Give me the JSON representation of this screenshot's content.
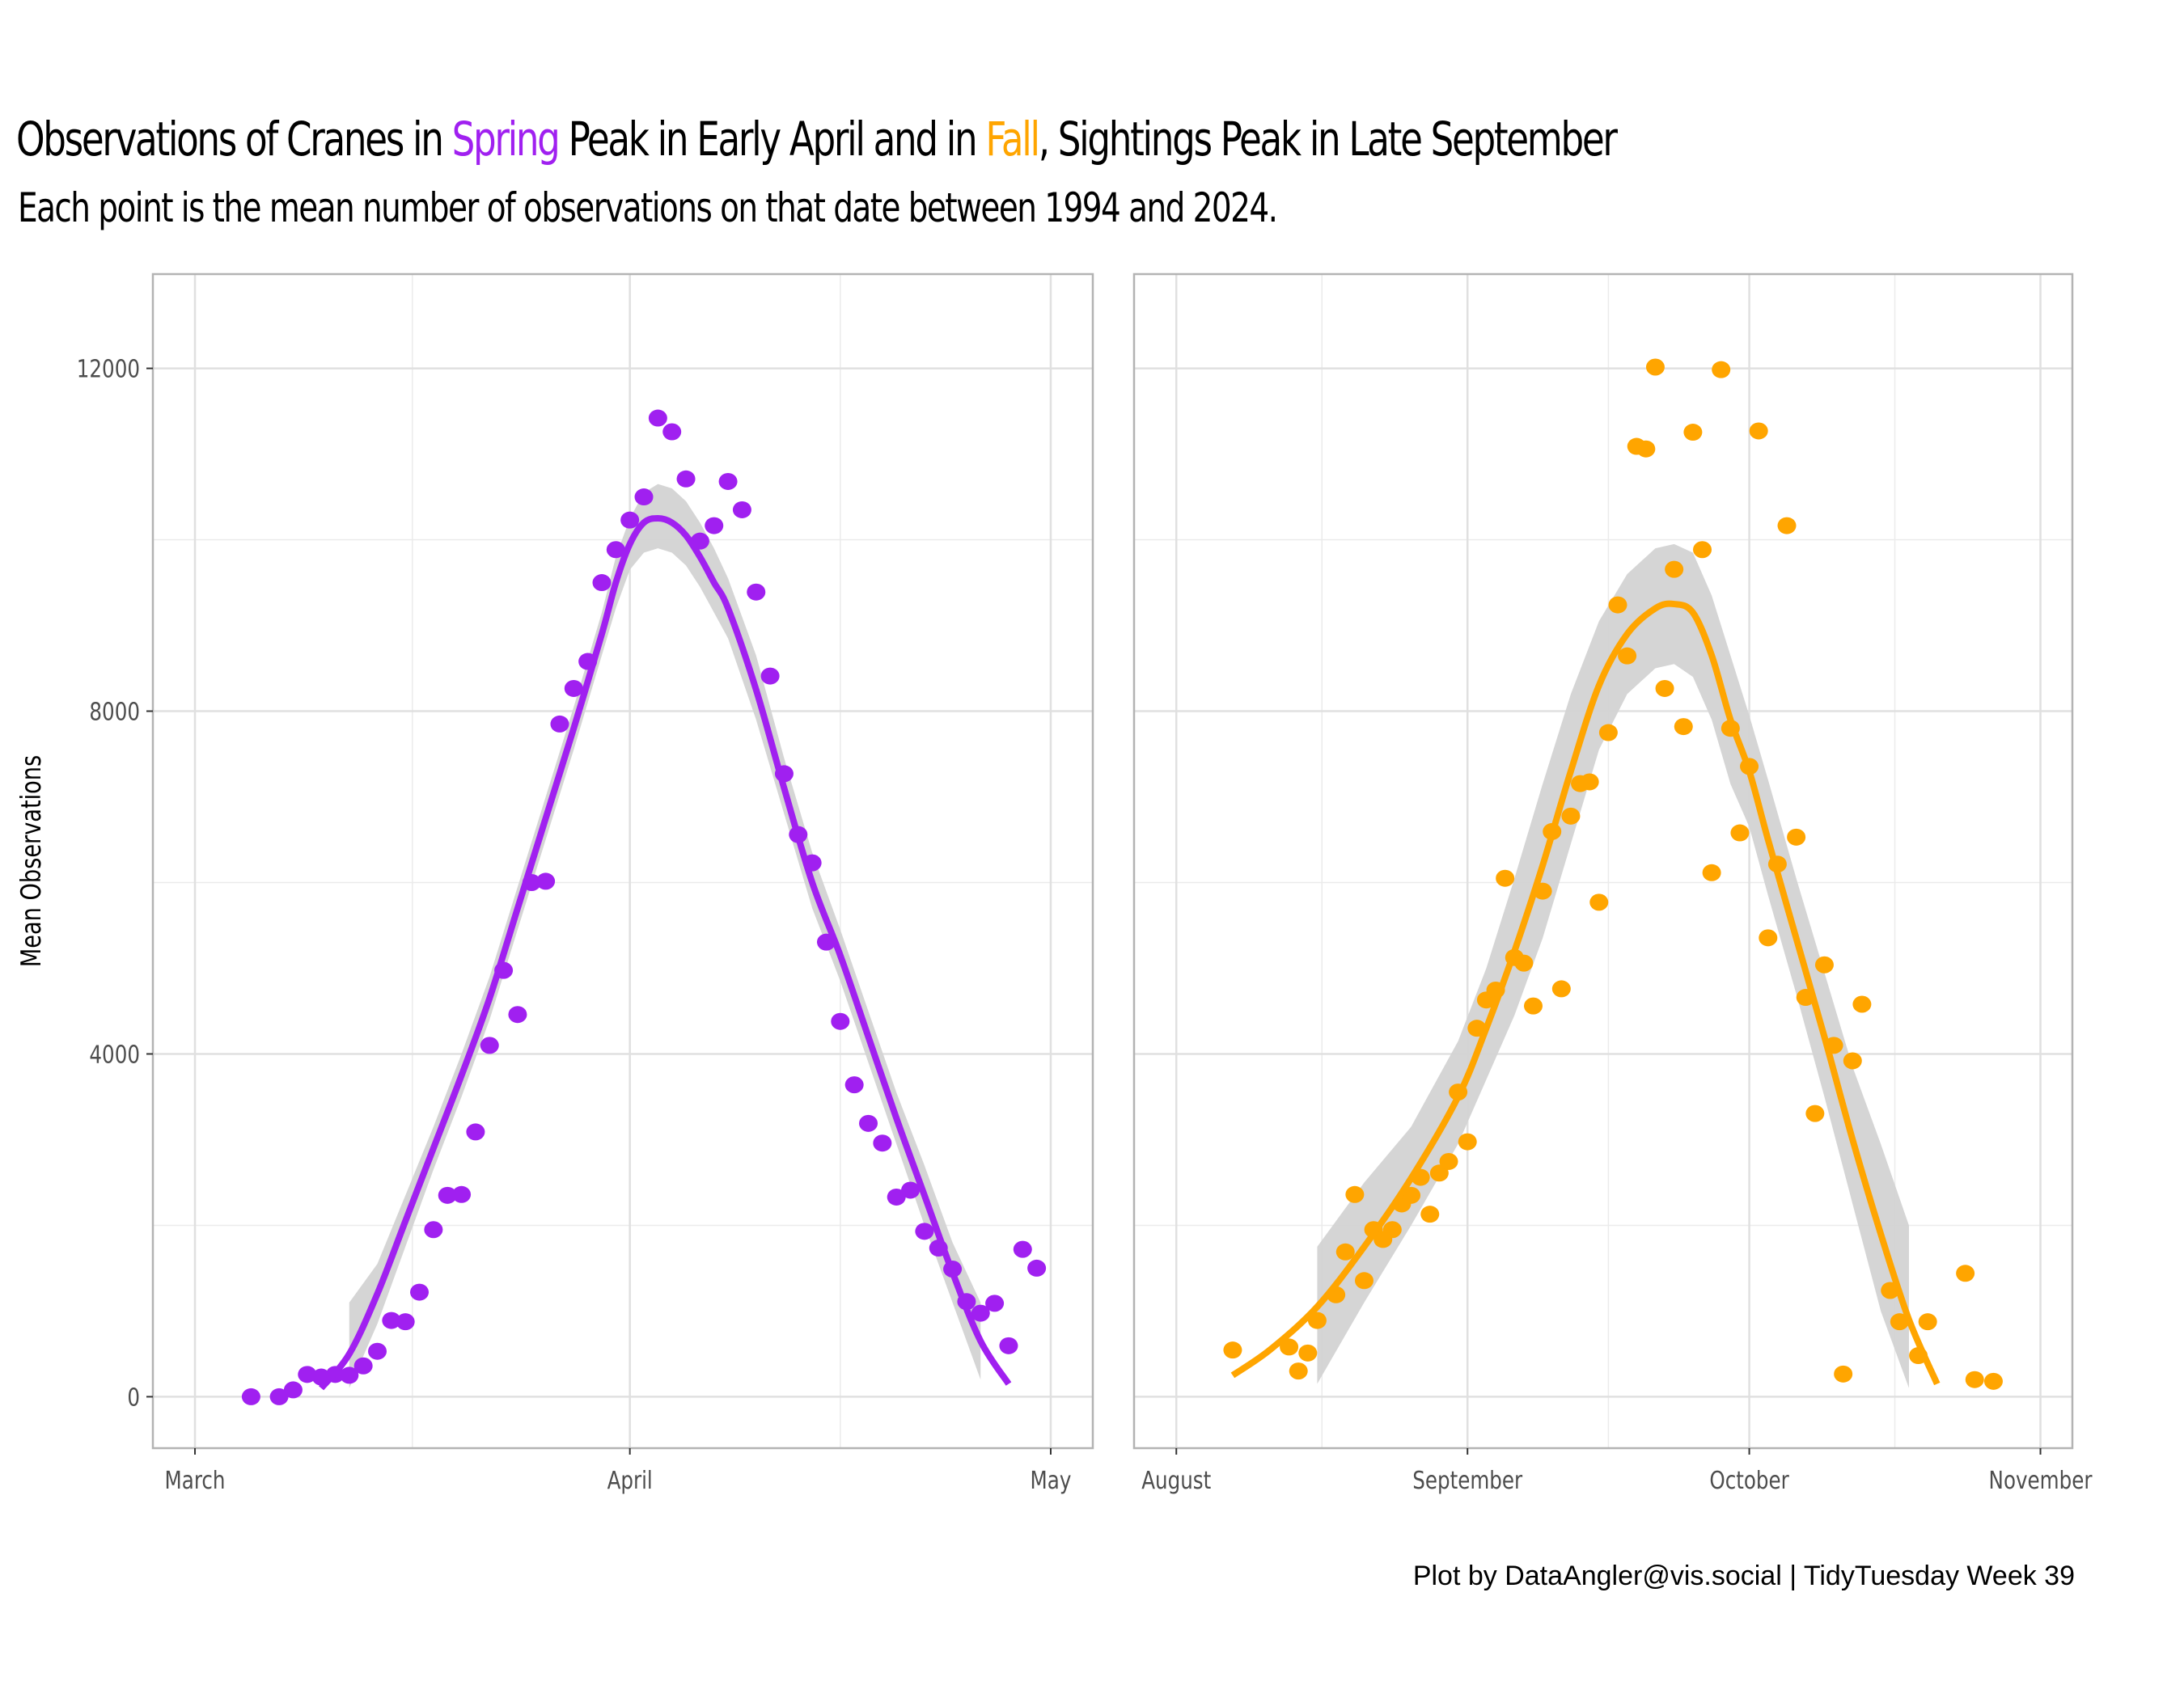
{
  "title": {
    "part1": "Observations of Cranes in ",
    "spring_word": "Spring",
    "part2": " Peak in Early April and in ",
    "fall_word": "Fall",
    "part3": ", Sightings Peak in Late September"
  },
  "subtitle": "Each point is the mean number of observations on that date between 1994 and 2024.",
  "caption": "Plot by DataAngler@vis.social | TidyTuesday Week 39",
  "colors": {
    "spring": "#A020F0",
    "fall": "#FFA500",
    "ribbon": "#D3D3D3",
    "grid": "#E0E0E0",
    "panel_border": "#B3B3B3"
  },
  "chart_data": [
    {
      "type": "scatter",
      "panel": "Spring",
      "title": "Observations of Cranes in Spring Peak in Early April and in Fall, Sightings Peak in Late September",
      "xlabel": "",
      "ylabel": "Mean Observations",
      "x_unit": "days since March 1",
      "xlim": [
        -3,
        64
      ],
      "ylim": [
        -600,
        13100
      ],
      "x_ticks": [
        {
          "value": 0,
          "label": "March"
        },
        {
          "value": 31,
          "label": "April"
        },
        {
          "value": 61,
          "label": "May"
        }
      ],
      "x_minor": [
        15.5,
        46
      ],
      "y_ticks": [
        {
          "value": 0,
          "label": "0"
        },
        {
          "value": 4000,
          "label": "4000"
        },
        {
          "value": 8000,
          "label": "8000"
        },
        {
          "value": 12000,
          "label": "12000"
        }
      ],
      "y_minor": [
        2000,
        6000,
        10000
      ],
      "grid": true,
      "points": {
        "x": [
          4,
          6,
          7,
          8,
          9,
          10,
          11,
          12,
          13,
          14,
          15,
          16,
          17,
          18,
          19,
          20,
          21,
          22,
          23,
          24,
          25,
          26,
          27,
          28,
          29,
          30,
          31,
          32,
          33,
          34,
          35,
          36,
          37,
          38,
          39,
          40,
          41,
          42,
          43,
          44,
          45,
          46,
          47,
          48,
          49,
          50,
          51,
          52,
          53,
          54,
          55,
          56,
          57,
          58,
          59,
          60
        ],
        "y": [
          0,
          0,
          80,
          260,
          230,
          260,
          250,
          360,
          530,
          890,
          875,
          1220,
          1950,
          2350,
          2360,
          3090,
          4100,
          4975,
          4460,
          6000,
          6015,
          7850,
          8265,
          8580,
          9500,
          9885,
          10230,
          10500,
          11420,
          11260,
          10710,
          9985,
          10165,
          10680,
          10350,
          9390,
          8410,
          7270,
          6560,
          6230,
          5305,
          4380,
          3640,
          3190,
          2960,
          2330,
          2410,
          1930,
          1735,
          1490,
          1110,
          975,
          1090,
          595,
          1720,
          1500
        ]
      },
      "smooth": {
        "x": [
          9,
          11,
          13,
          15,
          17,
          19,
          21,
          23,
          25,
          27,
          29,
          30,
          31,
          32,
          33,
          34,
          35,
          36,
          37,
          38,
          40,
          42,
          44,
          46,
          48,
          50,
          52,
          54,
          56,
          58
        ],
        "y": [
          100,
          500,
          1200,
          2050,
          2900,
          3750,
          4650,
          5700,
          6750,
          7800,
          8900,
          9500,
          9950,
          10200,
          10250,
          10200,
          10050,
          9800,
          9500,
          9200,
          8250,
          7100,
          6000,
          5150,
          4200,
          3250,
          2350,
          1450,
          650,
          150
        ],
        "lower": [
          null,
          100,
          850,
          1750,
          2650,
          3500,
          4400,
          5450,
          6500,
          7550,
          8650,
          9200,
          9650,
          9850,
          9900,
          9850,
          9700,
          9450,
          9150,
          8850,
          7900,
          6800,
          5700,
          4850,
          3900,
          2950,
          2000,
          1100,
          200,
          null
        ],
        "upper": [
          null,
          1100,
          1550,
          2350,
          3150,
          4000,
          4900,
          5950,
          7000,
          8050,
          9150,
          9800,
          10250,
          10550,
          10650,
          10600,
          10450,
          10200,
          9900,
          9550,
          8650,
          7450,
          6350,
          5450,
          4500,
          3550,
          2700,
          1800,
          1100,
          null
        ]
      }
    },
    {
      "type": "scatter",
      "panel": "Fall",
      "xlabel": "",
      "ylabel": "Mean Observations",
      "x_unit": "days since August 1",
      "xlim": [
        -4.5,
        95.4
      ],
      "ylim": [
        -600,
        13100
      ],
      "x_ticks": [
        {
          "value": 0,
          "label": "August"
        },
        {
          "value": 31,
          "label": "September"
        },
        {
          "value": 61,
          "label": "October"
        },
        {
          "value": 92,
          "label": "November"
        }
      ],
      "x_minor": [
        15.5,
        46,
        76.5
      ],
      "y_ticks": [
        {
          "value": 0,
          "label": "0"
        },
        {
          "value": 4000,
          "label": "4000"
        },
        {
          "value": 8000,
          "label": "8000"
        },
        {
          "value": 12000,
          "label": "12000"
        }
      ],
      "y_minor": [
        2000,
        6000,
        10000
      ],
      "grid": true,
      "points": {
        "x": [
          6,
          12,
          13,
          14,
          15,
          17,
          18,
          19,
          20,
          21,
          22,
          23,
          24,
          25,
          26,
          27,
          28,
          29,
          30,
          31,
          32,
          33,
          34,
          35,
          36,
          37,
          38,
          39,
          40,
          41,
          42,
          43,
          44,
          45,
          46,
          47,
          48,
          49,
          50,
          51,
          52,
          53,
          54,
          55,
          56,
          57,
          58,
          59,
          60,
          61,
          62,
          63,
          64,
          65,
          66,
          67,
          68,
          69,
          70,
          71,
          72,
          73,
          76,
          77,
          79,
          80,
          84,
          85,
          87
        ],
        "y": [
          545,
          580,
          300,
          510,
          890,
          1190,
          1690,
          2360,
          1355,
          1950,
          1835,
          1950,
          2250,
          2350,
          2560,
          2130,
          2610,
          2745,
          3555,
          2975,
          4300,
          4630,
          4745,
          6050,
          5125,
          5060,
          4560,
          5900,
          6595,
          4760,
          6775,
          7155,
          7175,
          5770,
          7750,
          9240,
          8645,
          11090,
          11060,
          12015,
          8265,
          9655,
          7820,
          11255,
          9885,
          6115,
          11985,
          7800,
          6580,
          7355,
          11270,
          5355,
          6215,
          10165,
          6530,
          4660,
          3305,
          5040,
          4100,
          265,
          3920,
          4580,
          1240,
          875,
          480,
          875,
          1440,
          200,
          180
        ]
      },
      "smooth": {
        "x": [
          6,
          10,
          15,
          20,
          25,
          30,
          33,
          36,
          39,
          42,
          45,
          48,
          51,
          53,
          55,
          57,
          59,
          61,
          63,
          66,
          69,
          72,
          75,
          78,
          81
        ],
        "y": [
          250,
          550,
          1050,
          1750,
          2550,
          3500,
          4300,
          5200,
          6200,
          7300,
          8300,
          8900,
          9200,
          9250,
          9150,
          8650,
          7900,
          7300,
          6500,
          5350,
          4200,
          3000,
          1900,
          900,
          150
        ],
        "lower": [
          null,
          null,
          150,
          1100,
          2000,
          2950,
          3700,
          4450,
          5350,
          6450,
          7550,
          8200,
          8500,
          8550,
          8400,
          7900,
          7150,
          6650,
          5850,
          4700,
          3500,
          2250,
          1000,
          100,
          null
        ],
        "upper": [
          null,
          null,
          1750,
          2500,
          3150,
          4150,
          5000,
          6050,
          7150,
          8200,
          9050,
          9600,
          9900,
          9950,
          9850,
          9350,
          8650,
          7950,
          7200,
          6050,
          4950,
          3850,
          2950,
          2000,
          null
        ]
      }
    }
  ]
}
